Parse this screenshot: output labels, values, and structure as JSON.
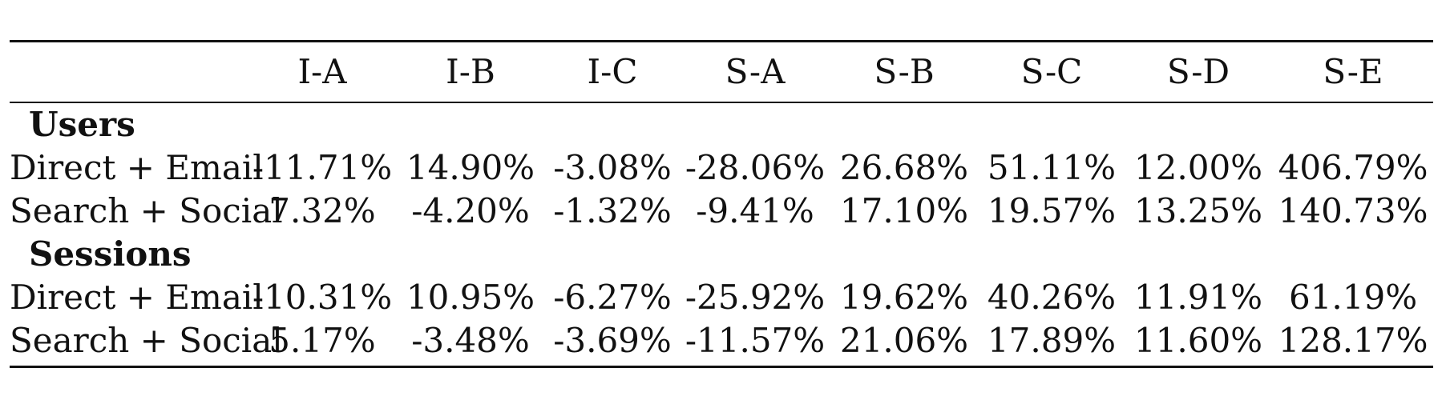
{
  "table": {
    "columns": [
      "",
      "I-A",
      "I-B",
      "I-C",
      "S-A",
      "S-B",
      "S-C",
      "S-D",
      "S-E"
    ],
    "groups": [
      {
        "name": "Users",
        "rows": [
          {
            "label": "Direct + Email",
            "values": [
              "-11.71%",
              "14.90%",
              "-3.08%",
              "-28.06%",
              "26.68%",
              "51.11%",
              "12.00%",
              "406.79%"
            ]
          },
          {
            "label": "Search + Social",
            "values": [
              "7.32%",
              "-4.20%",
              "-1.32%",
              "-9.41%",
              "17.10%",
              "19.57%",
              "13.25%",
              "140.73%"
            ]
          }
        ]
      },
      {
        "name": "Sessions",
        "rows": [
          {
            "label": "Direct + Email",
            "values": [
              "-10.31%",
              "10.95%",
              "-6.27%",
              "-25.92%",
              "19.62%",
              "40.26%",
              "11.91%",
              "61.19%"
            ]
          },
          {
            "label": "Search + Social",
            "values": [
              "5.17%",
              "-3.48%",
              "-3.69%",
              "-11.57%",
              "21.06%",
              "17.89%",
              "11.60%",
              "128.17%"
            ]
          }
        ]
      }
    ]
  }
}
